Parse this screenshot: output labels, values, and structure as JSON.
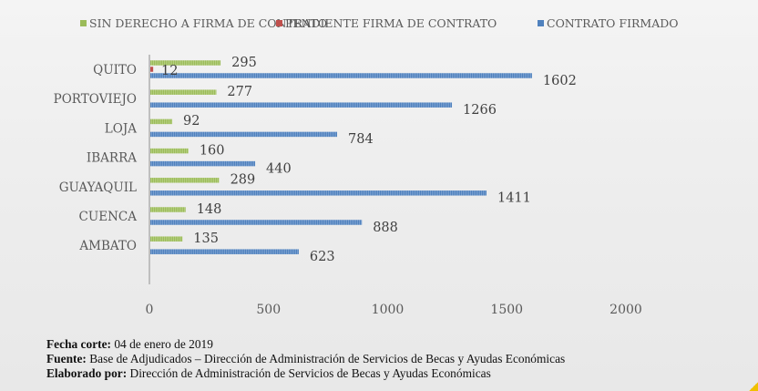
{
  "chart_data": {
    "type": "bar",
    "orientation": "horizontal",
    "title": "",
    "xlabel": "",
    "ylabel": "",
    "xlim": [
      0,
      2000
    ],
    "xticks": [
      0,
      500,
      1000,
      1500,
      2000
    ],
    "grid": false,
    "legend_position": "top",
    "categories": [
      "QUITO",
      "PORTOVIEJO",
      "LOJA",
      "IBARRA",
      "GUAYAQUIL",
      "CUENCA",
      "AMBATO"
    ],
    "series": [
      {
        "name": "SIN DERECHO A FIRMA DE CONTRATO",
        "color": "#9bbb59",
        "values": [
          295,
          277,
          92,
          160,
          289,
          148,
          135
        ]
      },
      {
        "name": "PENDIENTE FIRMA DE CONTRATO",
        "color": "#c0504d",
        "values": [
          12,
          null,
          null,
          null,
          null,
          null,
          null
        ]
      },
      {
        "name": "CONTRATO FIRMADO",
        "color": "#4f81bd",
        "values": [
          1602,
          1266,
          784,
          440,
          1411,
          888,
          623
        ]
      }
    ]
  },
  "footer": {
    "fecha_label": "Fecha corte:",
    "fecha_value": " 04 de enero de 2019",
    "fuente_label": "Fuente:",
    "fuente_value": " Base de Adjudicados – Dirección de Administración de Servicios de Becas y Ayudas Económicas",
    "elaborado_label": "Elaborado por:",
    "elaborado_value": " Dirección de Administración de Servicios de Becas y Ayudas Económicas"
  }
}
